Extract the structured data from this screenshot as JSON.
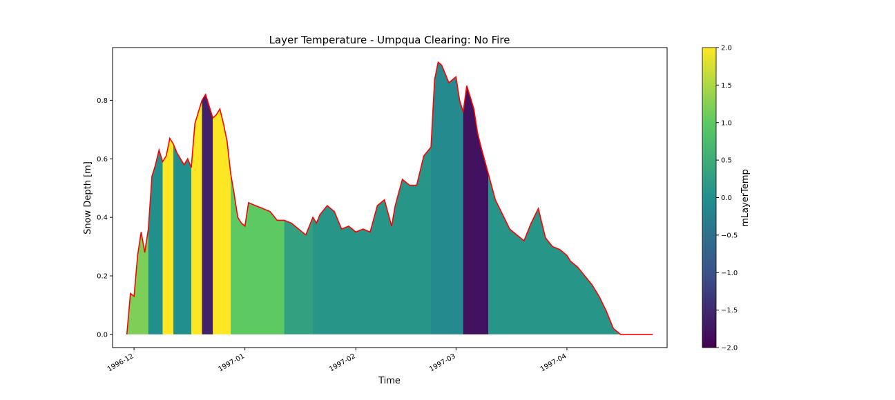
{
  "chart_data": {
    "type": "heatmap",
    "title": "Layer Temperature - Umpqua Clearing: No Fire",
    "xlabel": "Time",
    "ylabel": "Snow Depth [m]",
    "x_ticks": [
      "1996-12",
      "1997-01",
      "1997-02",
      "1997-03",
      "1997-04"
    ],
    "x_range": [
      "1996-11-25",
      "1997-04-29"
    ],
    "y_ticks": [
      "0.0",
      "0.2",
      "0.4",
      "0.6",
      "0.8"
    ],
    "ylim": [
      -0.045,
      0.98
    ],
    "colorbar": {
      "label": "mLayerTemp",
      "range": [
        -2.0,
        2.0
      ],
      "ticks": [
        "2.0",
        "1.5",
        "1.0",
        "0.5",
        "0.0",
        "−0.5",
        "−1.0",
        "−1.5",
        "−2.0"
      ],
      "colormap": "viridis",
      "colors": [
        "#440154",
        "#3b528b",
        "#21908d",
        "#5dc963",
        "#fde725"
      ]
    },
    "depth_line_color": "#ff0000",
    "snow_depth": {
      "x": [
        "1996-11-29",
        "1996-11-30",
        "1996-12-01",
        "1996-12-02",
        "1996-12-03",
        "1996-12-04",
        "1996-12-05",
        "1996-12-06",
        "1996-12-07",
        "1996-12-08",
        "1996-12-09",
        "1996-12-10",
        "1996-12-11",
        "1996-12-12",
        "1996-12-13",
        "1996-12-14",
        "1996-12-15",
        "1996-12-16",
        "1996-12-17",
        "1996-12-18",
        "1996-12-19",
        "1996-12-20",
        "1996-12-21",
        "1996-12-22",
        "1996-12-23",
        "1996-12-24",
        "1996-12-25",
        "1996-12-26",
        "1996-12-27",
        "1996-12-28",
        "1996-12-29",
        "1996-12-30",
        "1996-12-31",
        "1997-01-01",
        "1997-01-02",
        "1997-01-04",
        "1997-01-06",
        "1997-01-08",
        "1997-01-10",
        "1997-01-12",
        "1997-01-14",
        "1997-01-16",
        "1997-01-18",
        "1997-01-20",
        "1997-01-21",
        "1997-01-22",
        "1997-01-24",
        "1997-01-26",
        "1997-01-28",
        "1997-01-30",
        "1997-02-01",
        "1997-02-03",
        "1997-02-05",
        "1997-02-07",
        "1997-02-09",
        "1997-02-11",
        "1997-02-12",
        "1997-02-14",
        "1997-02-16",
        "1997-02-18",
        "1997-02-20",
        "1997-02-22",
        "1997-02-23",
        "1997-02-24",
        "1997-02-25",
        "1997-02-27",
        "1997-03-01",
        "1997-03-02",
        "1997-03-03",
        "1997-03-04",
        "1997-03-05",
        "1997-03-06",
        "1997-03-07",
        "1997-03-08",
        "1997-03-10",
        "1997-03-12",
        "1997-03-14",
        "1997-03-16",
        "1997-03-18",
        "1997-03-20",
        "1997-03-22",
        "1997-03-24",
        "1997-03-26",
        "1997-03-28",
        "1997-03-30",
        "1997-04-01",
        "1997-04-02",
        "1997-04-03",
        "1997-04-04",
        "1997-04-06",
        "1997-04-08",
        "1997-04-10",
        "1997-04-12",
        "1997-04-14",
        "1997-04-16",
        "1997-04-18",
        "1997-04-19",
        "1997-04-20",
        "1997-04-22",
        "1997-04-25"
      ],
      "y": [
        0.0,
        0.14,
        0.13,
        0.27,
        0.35,
        0.28,
        0.36,
        0.54,
        0.58,
        0.63,
        0.59,
        0.61,
        0.67,
        0.65,
        0.62,
        0.6,
        0.58,
        0.6,
        0.57,
        0.72,
        0.76,
        0.8,
        0.82,
        0.78,
        0.74,
        0.75,
        0.77,
        0.72,
        0.66,
        0.55,
        0.48,
        0.4,
        0.38,
        0.37,
        0.45,
        0.44,
        0.43,
        0.42,
        0.39,
        0.39,
        0.38,
        0.36,
        0.34,
        0.4,
        0.38,
        0.41,
        0.44,
        0.42,
        0.36,
        0.37,
        0.35,
        0.36,
        0.35,
        0.44,
        0.46,
        0.37,
        0.44,
        0.53,
        0.51,
        0.51,
        0.61,
        0.64,
        0.87,
        0.93,
        0.92,
        0.86,
        0.88,
        0.8,
        0.76,
        0.85,
        0.81,
        0.77,
        0.69,
        0.64,
        0.55,
        0.46,
        0.41,
        0.36,
        0.34,
        0.32,
        0.38,
        0.43,
        0.33,
        0.3,
        0.29,
        0.27,
        0.25,
        0.24,
        0.23,
        0.2,
        0.17,
        0.13,
        0.08,
        0.02,
        0.0,
        0.0,
        0.0,
        0.0,
        0.0,
        0.0
      ]
    },
    "layer_temperature_segments": [
      {
        "start": "1996-11-29",
        "end": "1996-12-05",
        "value": 1.2
      },
      {
        "start": "1996-12-05",
        "end": "1996-12-09",
        "value": 0.0
      },
      {
        "start": "1996-12-09",
        "end": "1996-12-12",
        "value": 2.0
      },
      {
        "start": "1996-12-12",
        "end": "1996-12-17",
        "value": 0.0
      },
      {
        "start": "1996-12-17",
        "end": "1996-12-20",
        "value": 2.0
      },
      {
        "start": "1996-12-20",
        "end": "1996-12-23",
        "value": -1.6
      },
      {
        "start": "1996-12-23",
        "end": "1996-12-28",
        "value": 2.0
      },
      {
        "start": "1996-12-28",
        "end": "1997-01-12",
        "value": 1.0
      },
      {
        "start": "1997-01-12",
        "end": "1997-01-20",
        "value": 0.3
      },
      {
        "start": "1997-01-20",
        "end": "1997-02-22",
        "value": 0.1
      },
      {
        "start": "1997-02-22",
        "end": "1997-03-03",
        "value": -0.1
      },
      {
        "start": "1997-03-03",
        "end": "1997-03-10",
        "value": -1.8
      },
      {
        "start": "1997-03-10",
        "end": "1997-04-20",
        "value": 0.1
      }
    ]
  }
}
